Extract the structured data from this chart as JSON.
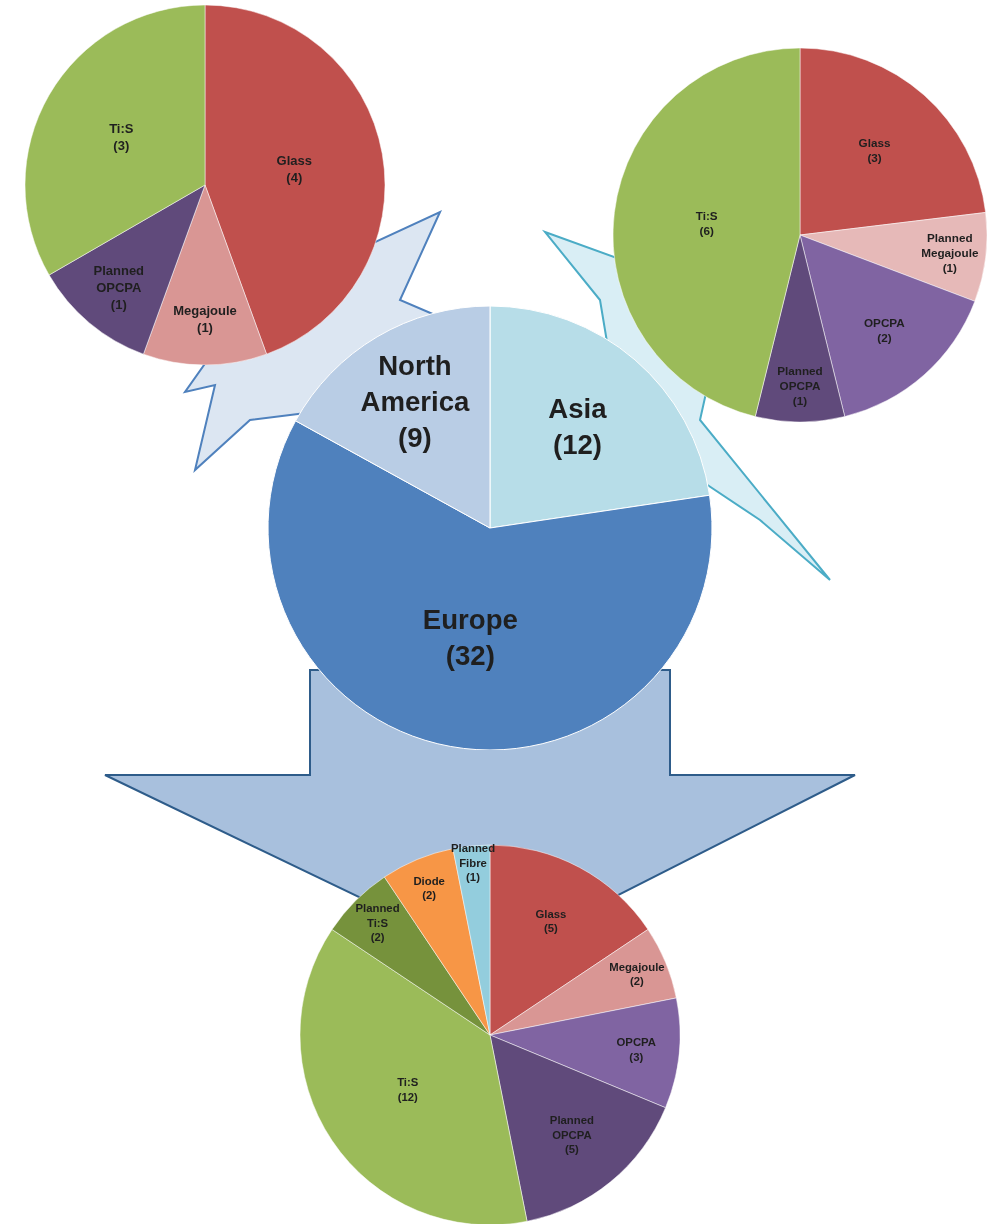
{
  "chart_data": [
    {
      "type": "pie",
      "categories": [
        "Glass",
        "Megajoule",
        "Planned OPCPA",
        "Ti:S"
      ],
      "values": [
        4,
        1,
        1,
        3
      ],
      "value_labels": [
        "(4)",
        "(1)",
        "(1)",
        "(3)"
      ],
      "colors": [
        "#c0504d",
        "#d99694",
        "#604a7b",
        "#9bbb59"
      ]
    },
    {
      "type": "pie",
      "categories": [
        "Glass",
        "Planned Megajoule",
        "OPCPA",
        "Planned OPCPA",
        "Ti:S"
      ],
      "values": [
        3,
        1,
        2,
        1,
        6
      ],
      "value_labels": [
        "(3)",
        "(1)",
        "(2)",
        "(1)",
        "(6)"
      ],
      "colors": [
        "#c0504d",
        "#e6b9b8",
        "#8064a2",
        "#604a7b",
        "#9bbb59"
      ]
    },
    {
      "type": "pie",
      "categories": [
        "Asia",
        "Europe",
        "North America"
      ],
      "values": [
        12,
        32,
        9
      ],
      "value_labels": [
        "(12)",
        "(32)",
        "(9)"
      ],
      "colors": [
        "#b7dde8",
        "#4f81bd",
        "#b9cde5"
      ]
    },
    {
      "type": "pie",
      "categories": [
        "Glass",
        "Megajoule",
        "OPCPA",
        "Planned OPCPA",
        "Ti:S",
        "Planned Ti:S",
        "Diode",
        "Planned Fibre"
      ],
      "values": [
        5,
        2,
        3,
        5,
        12,
        2,
        2,
        1
      ],
      "value_labels": [
        "(5)",
        "(2)",
        "(3)",
        "(5)",
        "(12)",
        "(2)",
        "(2)",
        "(1)"
      ],
      "colors": [
        "#c0504d",
        "#d99694",
        "#8064a2",
        "#604a7b",
        "#9bbb59",
        "#76923c",
        "#f79646",
        "#93cddd"
      ]
    }
  ]
}
